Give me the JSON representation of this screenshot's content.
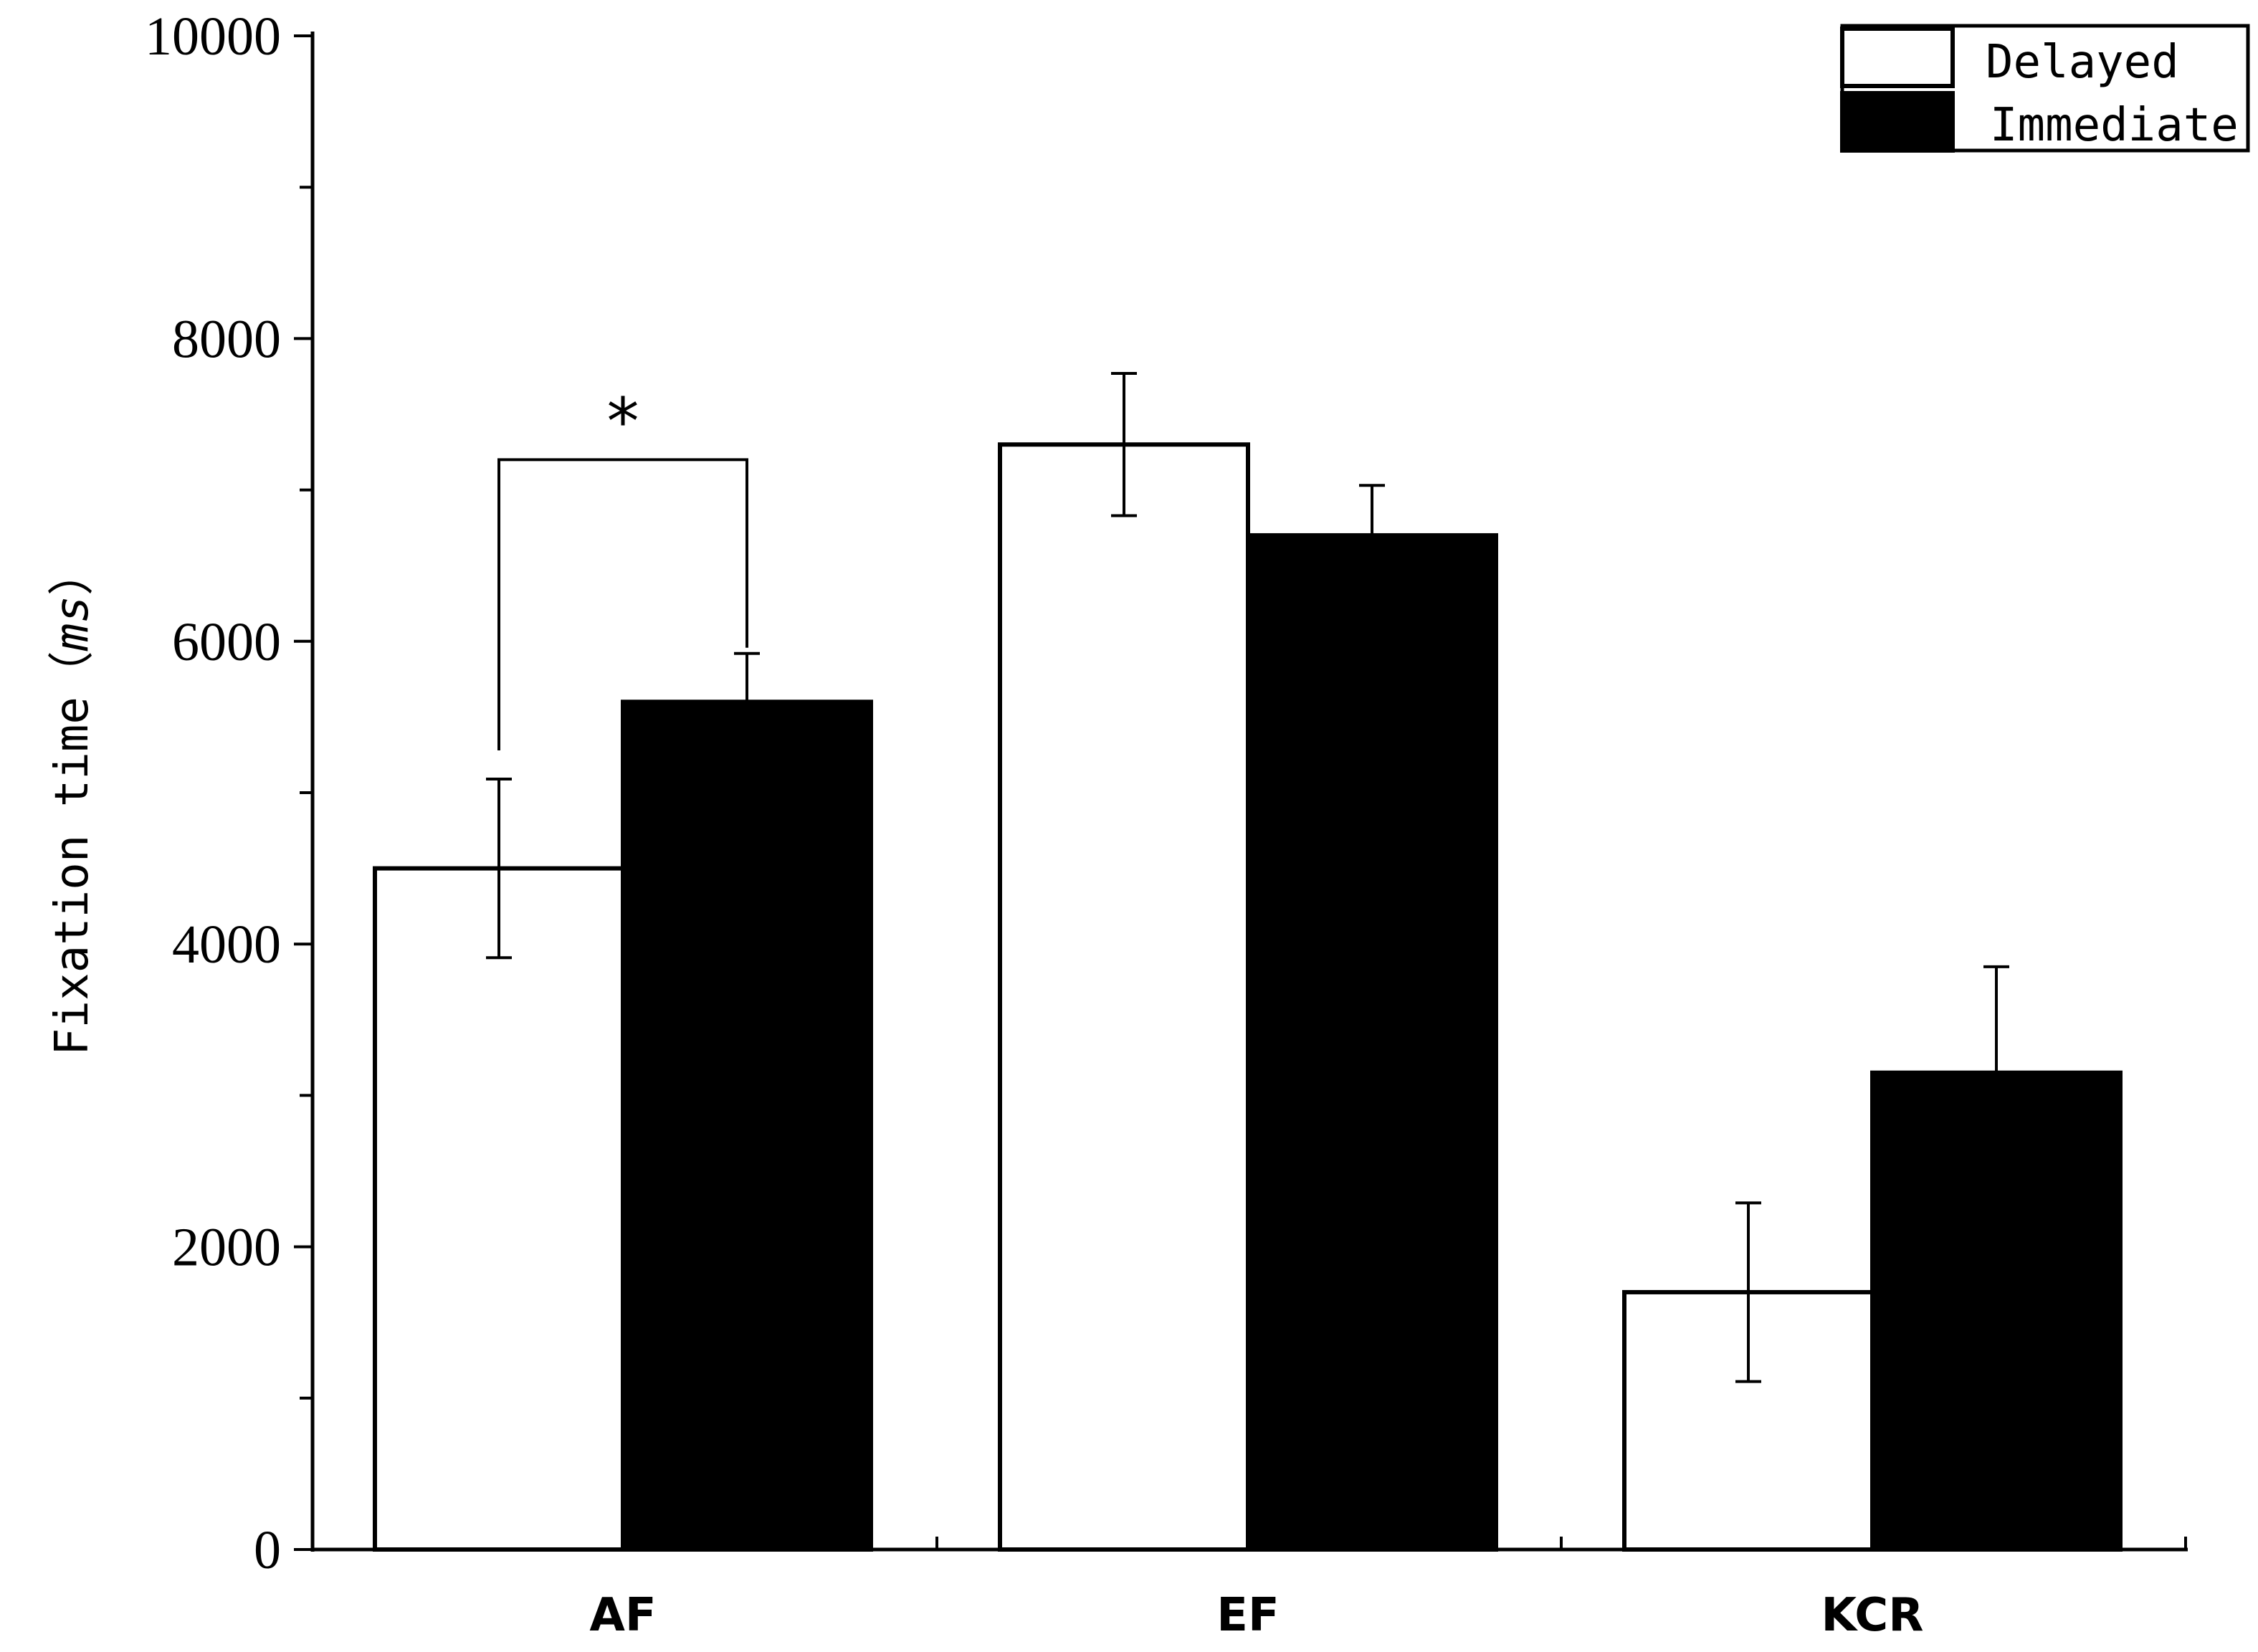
{
  "chart_data": {
    "type": "bar",
    "categories": [
      "AF",
      "EF",
      "KCR"
    ],
    "series": [
      {
        "name": "Delayed",
        "values": [
          4500,
          7300,
          1700
        ],
        "errors": [
          590,
          470,
          590
        ],
        "color": "#ffffff"
      },
      {
        "name": "Immediate",
        "values": [
          5600,
          6700,
          3150
        ],
        "errors": [
          320,
          330,
          700
        ],
        "color": "#000000"
      }
    ],
    "ylabel": "Fixation time",
    "ylabel_unit": "ms",
    "ylabel_paren_open": "（",
    "ylabel_paren_close": "）",
    "ylim": [
      0,
      10000
    ],
    "yticks": [
      "0",
      "2000",
      "4000",
      "6000",
      "8000",
      "10000"
    ],
    "minor_tick_step": 1000,
    "legend_position": "top-right",
    "significance": {
      "category": "AF",
      "label": "*",
      "bracket_value": 7200
    }
  }
}
